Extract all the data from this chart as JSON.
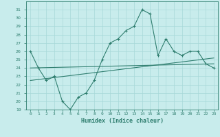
{
  "x": [
    0,
    1,
    2,
    3,
    4,
    5,
    6,
    7,
    8,
    9,
    10,
    11,
    12,
    13,
    14,
    15,
    16,
    17,
    18,
    19,
    20,
    21,
    22,
    23
  ],
  "y_main": [
    26.0,
    24.0,
    22.5,
    23.0,
    20.0,
    19.0,
    20.5,
    21.0,
    22.5,
    25.0,
    27.0,
    27.5,
    28.5,
    29.0,
    31.0,
    30.5,
    25.5,
    27.5,
    26.0,
    25.5,
    26.0,
    26.0,
    24.5,
    24.0
  ],
  "trend1_x": [
    0,
    23
  ],
  "trend1_y": [
    22.5,
    25.2
  ],
  "trend2_x": [
    0,
    23
  ],
  "trend2_y": [
    24.0,
    24.5
  ],
  "line_color": "#2e7d6e",
  "bg_color": "#c8ecec",
  "grid_color": "#a8d8d8",
  "xlabel": "Humidex (Indice chaleur)",
  "ylim": [
    19,
    32
  ],
  "xlim": [
    -0.5,
    23.5
  ],
  "yticks": [
    19,
    20,
    21,
    22,
    23,
    24,
    25,
    26,
    27,
    28,
    29,
    30,
    31
  ],
  "xticks": [
    0,
    1,
    2,
    3,
    4,
    5,
    6,
    7,
    8,
    9,
    10,
    11,
    12,
    13,
    14,
    15,
    16,
    17,
    18,
    19,
    20,
    21,
    22,
    23
  ],
  "xtick_labels": [
    "0",
    "1",
    "2",
    "3",
    "4",
    "5",
    "6",
    "7",
    "8",
    "9",
    "10",
    "11",
    "12",
    "13",
    "14",
    "15",
    "16",
    "17",
    "18",
    "19",
    "20",
    "21",
    "22",
    "23"
  ],
  "tick_fontsize": 4.5,
  "label_fontsize": 6.0
}
